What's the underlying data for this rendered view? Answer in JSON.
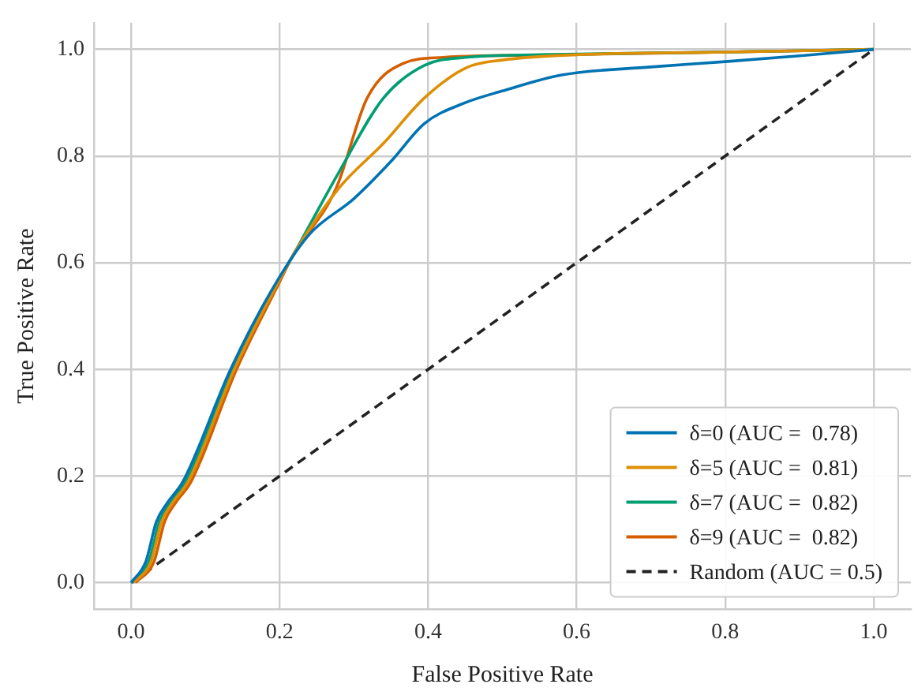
{
  "chart_data": {
    "type": "line",
    "xlabel": "False Positive Rate",
    "ylabel": "True Positive Rate",
    "xlim": [
      -0.05,
      1.05
    ],
    "ylim": [
      -0.05,
      1.05
    ],
    "xticks": [
      {
        "value": 0,
        "label": "0.0"
      },
      {
        "value": 0.2,
        "label": "0.2"
      },
      {
        "value": 0.4,
        "label": "0.4"
      },
      {
        "value": 0.6,
        "label": "0.6"
      },
      {
        "value": 0.8,
        "label": "0.8"
      },
      {
        "value": 1,
        "label": "1.0"
      }
    ],
    "yticks": [
      {
        "value": 0,
        "label": "0.0"
      },
      {
        "value": 0.2,
        "label": "0.2"
      },
      {
        "value": 0.4,
        "label": "0.4"
      },
      {
        "value": 0.6,
        "label": "0.6"
      },
      {
        "value": 0.8,
        "label": "0.8"
      },
      {
        "value": 1,
        "label": "1.0"
      }
    ],
    "grid": true,
    "legend": "bottom right",
    "marker": "none",
    "series": [
      {
        "name": "δ=0 (AUC =  0.78)",
        "color": "#0173b2",
        "x": [
          0,
          0.02,
          0.034,
          0.049,
          0.07,
          0.134,
          0.19,
          0.24,
          0.3,
          0.35,
          0.395,
          0.45,
          0.5,
          0.58,
          0.7,
          0.8,
          0.9,
          1
        ],
        "values": [
          0,
          0.04,
          0.114,
          0.15,
          0.19,
          0.4,
          0.55,
          0.653,
          0.72,
          0.79,
          0.861,
          0.9,
          0.922,
          0.952,
          0.967,
          0.977,
          0.988,
          1
        ]
      },
      {
        "name": "δ=5 (AUC =  0.81)",
        "color": "#de8f05",
        "x": [
          0.004,
          0.027,
          0.041,
          0.056,
          0.077,
          0.139,
          0.193,
          0.219,
          0.28,
          0.34,
          0.395,
          0.452,
          0.5,
          0.6,
          0.8,
          1
        ],
        "values": [
          0,
          0.04,
          0.114,
          0.15,
          0.19,
          0.4,
          0.55,
          0.616,
          0.74,
          0.824,
          0.909,
          0.966,
          0.98,
          0.99,
          0.995,
          1
        ]
      },
      {
        "name": "δ=7 (AUC =  0.82)",
        "color": "#029e73",
        "x": [
          0.002,
          0.024,
          0.038,
          0.053,
          0.074,
          0.137,
          0.192,
          0.219,
          0.28,
          0.34,
          0.395,
          0.45,
          0.55,
          0.8,
          1
        ],
        "values": [
          0,
          0.04,
          0.114,
          0.15,
          0.19,
          0.4,
          0.55,
          0.616,
          0.77,
          0.909,
          0.97,
          0.985,
          0.99,
          0.995,
          1
        ]
      },
      {
        "name": "δ=9 (AUC =  0.82)",
        "color": "#d55e00",
        "x": [
          0.006,
          0.031,
          0.045,
          0.06,
          0.081,
          0.142,
          0.195,
          0.219,
          0.276,
          0.318,
          0.367,
          0.42,
          0.58,
          0.8,
          1
        ],
        "values": [
          0,
          0.04,
          0.114,
          0.15,
          0.19,
          0.4,
          0.55,
          0.616,
          0.739,
          0.909,
          0.974,
          0.985,
          0.99,
          0.995,
          1
        ]
      },
      {
        "name": "Random (AUC = 0.5)",
        "color": "#222222",
        "line_style": "dashed",
        "x": [
          0,
          1
        ],
        "values": [
          0,
          1
        ]
      }
    ]
  }
}
